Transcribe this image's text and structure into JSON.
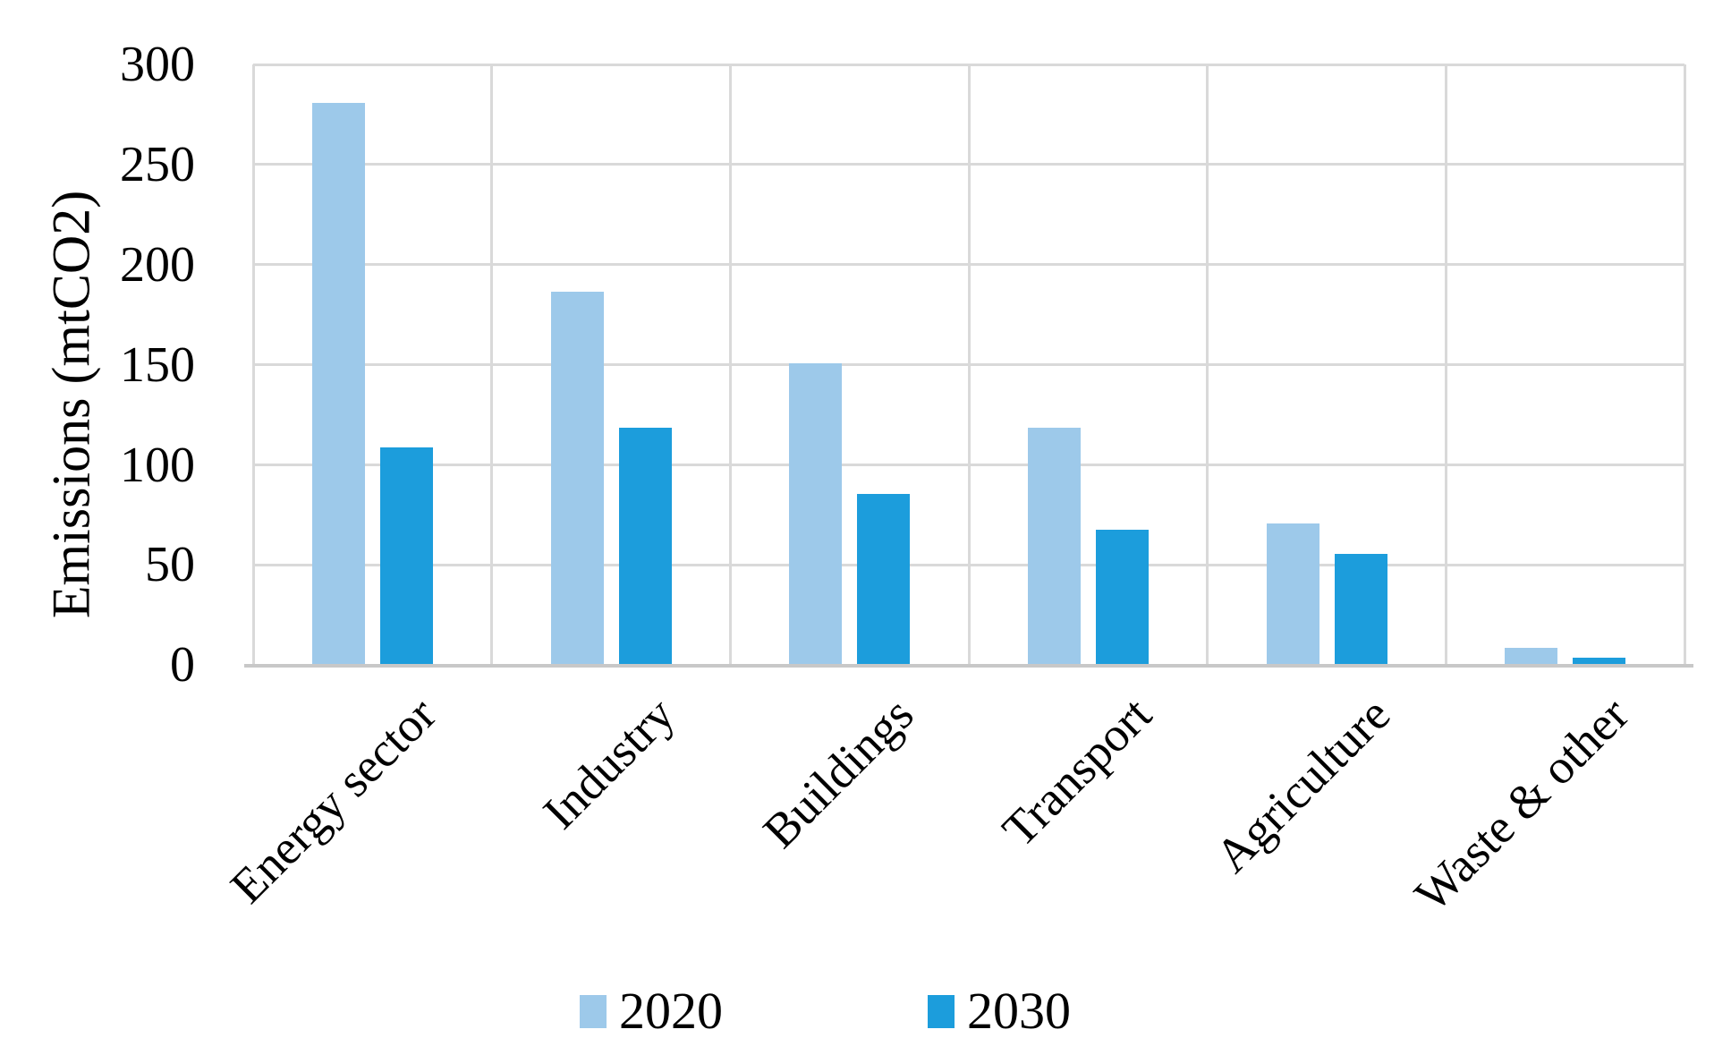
{
  "chart_data": {
    "type": "bar",
    "title": "",
    "xlabel": "",
    "ylabel": "Emissions (mtCO2)",
    "ylim": [
      0,
      300
    ],
    "yticks": [
      0,
      50,
      100,
      150,
      200,
      250,
      300
    ],
    "grid": "horizontal gridlines every 50, vertical category separators, no top/right emphasis",
    "legend_position": "bottom",
    "categories": [
      "Energy sector",
      "Industry",
      "Buildings",
      "Transport",
      "Agriculture",
      "Waste & other"
    ],
    "series": [
      {
        "name": "2020",
        "color": "#9DC9EA",
        "values": [
          280,
          186,
          150,
          118,
          70,
          8
        ]
      },
      {
        "name": "2030",
        "color": "#1C9DDC",
        "values": [
          108,
          118,
          85,
          67,
          55,
          3
        ]
      }
    ],
    "colors": {
      "background": "#FFFFFF",
      "gridline": "#D9D9D9",
      "axis_line": "#C8C8C8",
      "text": "#000000"
    }
  }
}
